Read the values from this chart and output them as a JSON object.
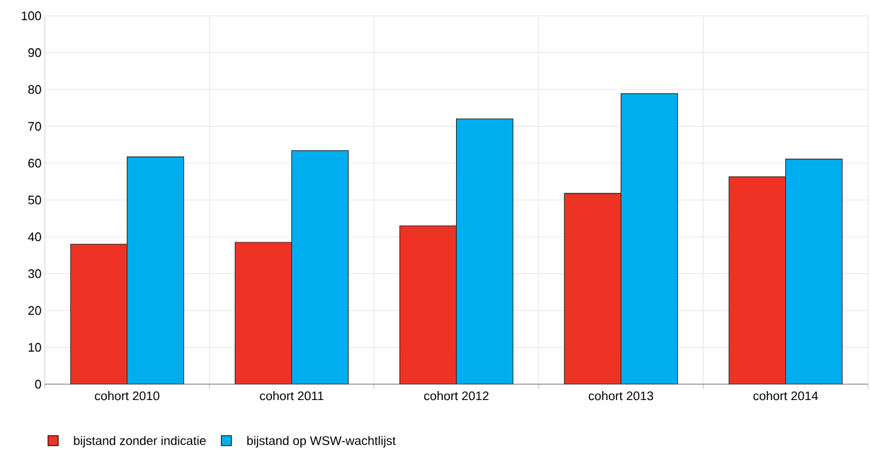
{
  "chart_data": {
    "type": "bar",
    "categories": [
      "cohort 2010",
      "cohort 2011",
      "cohort 2012",
      "cohort 2013",
      "cohort 2014"
    ],
    "series": [
      {
        "name": "bijstand zonder indicatie",
        "color": "#ee3224",
        "values": [
          38,
          38.5,
          43,
          51.8,
          56.3
        ]
      },
      {
        "name": "bijstand op WSW-wachtlijst",
        "color": "#00aeef",
        "values": [
          61.7,
          63.4,
          72,
          78.9,
          61.1
        ]
      }
    ],
    "ylim": [
      0,
      100
    ],
    "yticks": [
      0,
      10,
      20,
      30,
      40,
      50,
      60,
      70,
      80,
      90,
      100
    ],
    "grid": true,
    "legend": "bottom left"
  }
}
